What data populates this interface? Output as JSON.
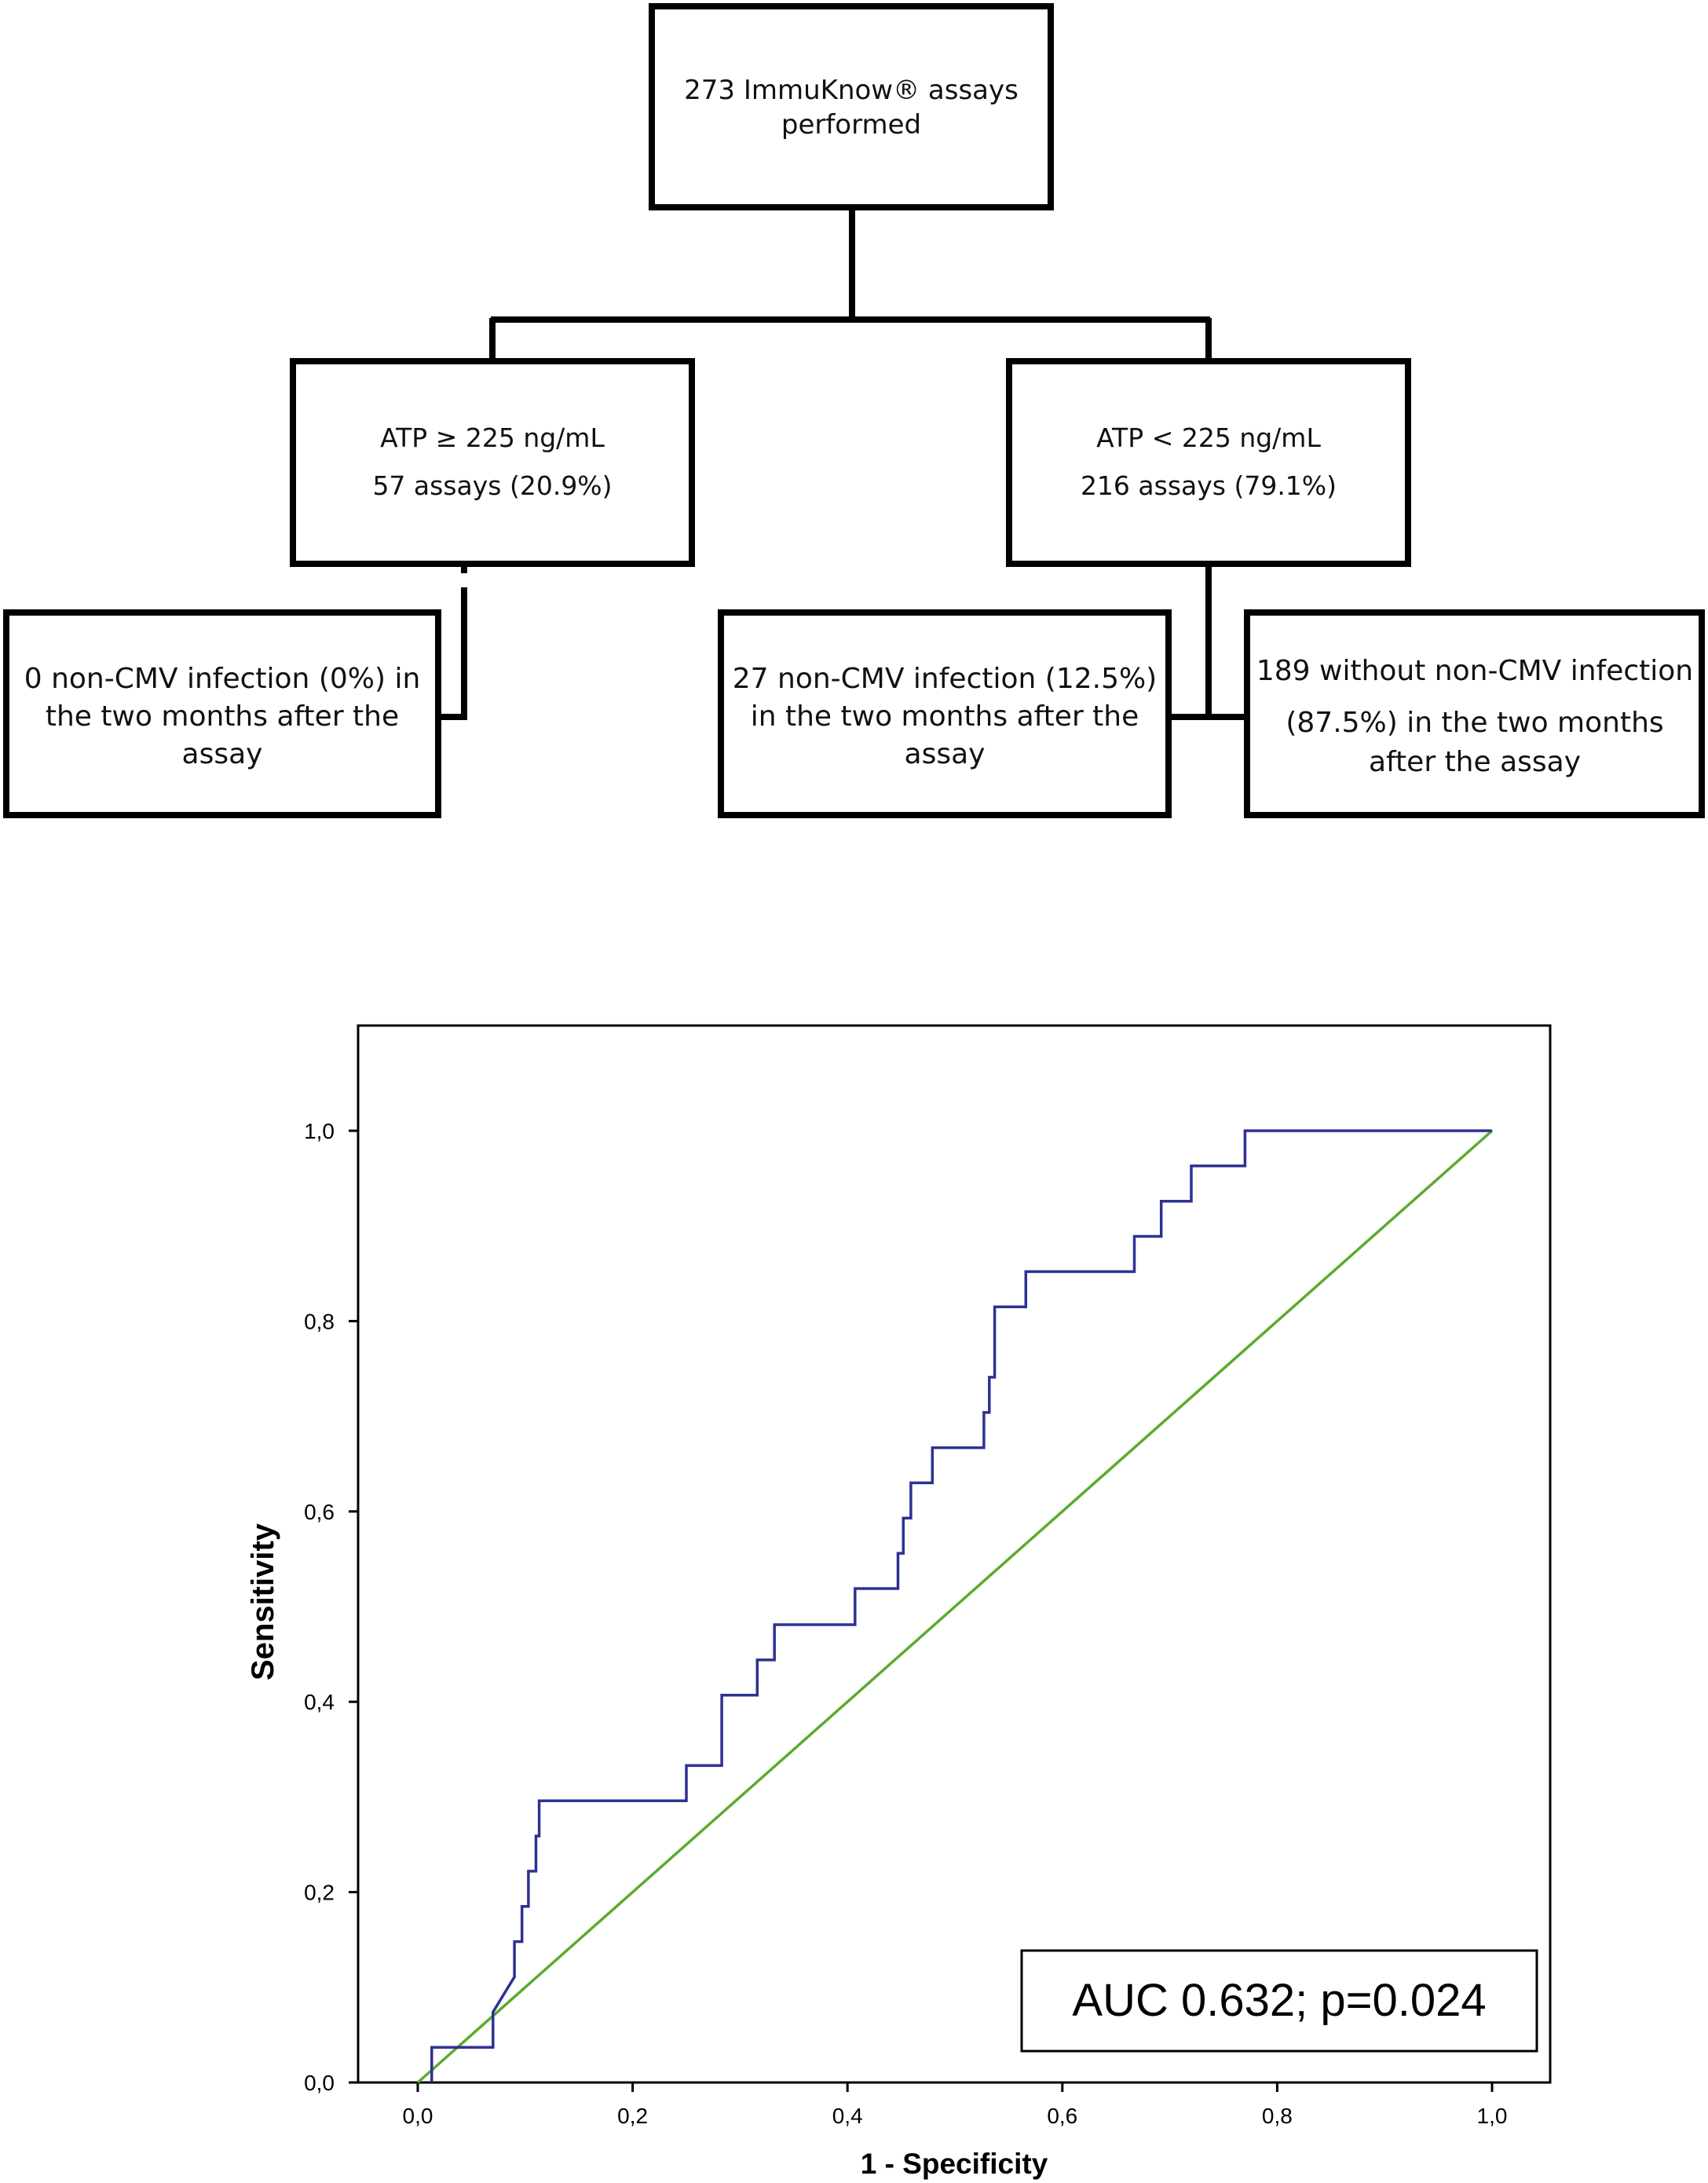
{
  "flowchart": {
    "root": {
      "lines": [
        "273 ImmuKnow® assays",
        "performed"
      ]
    },
    "left_branch": {
      "lines": [
        "ATP  ≥ 225 ng/mL",
        "57 assays  (20.9%)"
      ]
    },
    "right_branch": {
      "lines": [
        "ATP < 225 ng/mL",
        "216 assays (79.1%)"
      ]
    },
    "left_outcome": {
      "lines": [
        "0 non-CMV infection (0%) in",
        "the two months after the",
        "assay"
      ]
    },
    "right_outcome_infected": {
      "lines": [
        "27 non-CMV infection (12.5%)",
        "in the two months after the",
        "assay"
      ]
    },
    "right_outcome_not_infected": {
      "lines": [
        "189 without non-CMV infection",
        "(87.5%) in the two months",
        "after the assay"
      ]
    }
  },
  "chart_data": {
    "type": "line",
    "title": "",
    "xlabel": "1 - Specificity",
    "ylabel": "Sensitivity",
    "xlim": [
      0.0,
      1.1
    ],
    "ylim": [
      0.0,
      1.1
    ],
    "x_ticks": [
      "0,0",
      "0,2",
      "0,4",
      "0,6",
      "0,8",
      "1,0"
    ],
    "y_ticks": [
      "0,0",
      "0,2",
      "0,4",
      "0,6",
      "0,8",
      "1,0"
    ],
    "annotation": "AUC 0.632; p=0.024",
    "grid": false,
    "colors": {
      "roc": "#2e3192",
      "reference": "#5aab2e"
    },
    "series": [
      {
        "x": [
          0.013,
          0.013,
          0.07,
          0.07,
          0.09,
          0.09,
          0.097,
          0.097,
          0.103,
          0.103,
          0.11,
          0.11,
          0.113,
          0.113,
          0.117,
          0.117,
          0.25,
          0.25,
          0.283,
          0.283,
          0.316,
          0.316,
          0.332,
          0.332,
          0.407,
          0.407,
          0.447,
          0.447,
          0.452,
          0.452,
          0.459,
          0.459,
          0.479,
          0.479,
          0.527,
          0.527,
          0.532,
          0.532,
          0.537,
          0.537,
          0.566,
          0.566,
          0.667,
          0.667,
          0.692,
          0.692,
          0.72,
          0.72,
          0.77,
          0.77,
          1.0
        ],
        "y": [
          0.0,
          0.037,
          0.037,
          0.074,
          0.111,
          0.148,
          0.148,
          0.185,
          0.185,
          0.222,
          0.222,
          0.259,
          0.259,
          0.296,
          0.296,
          0.296,
          0.296,
          0.333,
          0.333,
          0.407,
          0.407,
          0.444,
          0.444,
          0.481,
          0.481,
          0.519,
          0.519,
          0.556,
          0.556,
          0.593,
          0.593,
          0.63,
          0.63,
          0.667,
          0.667,
          0.704,
          0.704,
          0.741,
          0.741,
          0.815,
          0.815,
          0.852,
          0.852,
          0.889,
          0.889,
          0.926,
          0.926,
          0.963,
          0.963,
          1.0,
          1.0
        ]
      },
      {
        "x": [
          0.0,
          1.0
        ],
        "y": [
          0.0,
          1.0
        ]
      }
    ]
  }
}
